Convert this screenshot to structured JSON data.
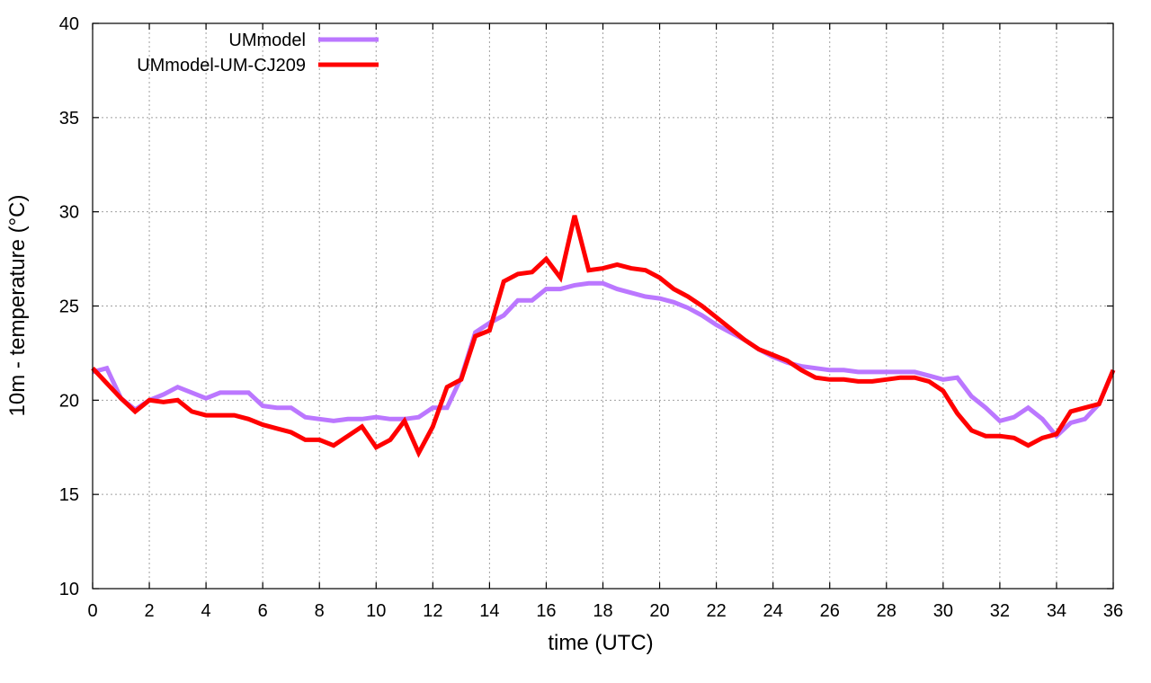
{
  "chart_data": {
    "type": "line",
    "xlabel": "time (UTC)",
    "ylabel": "10m - temperature (°C)",
    "xlim": [
      0,
      36
    ],
    "ylim": [
      10,
      40
    ],
    "xticks": [
      0,
      2,
      4,
      6,
      8,
      10,
      12,
      14,
      16,
      18,
      20,
      22,
      24,
      26,
      28,
      30,
      32,
      34,
      36
    ],
    "yticks": [
      10,
      15,
      20,
      25,
      30,
      35,
      40
    ],
    "grid": true,
    "legend_position": "top-left",
    "series": [
      {
        "name": "UMmodel",
        "color": "#bb77ff",
        "points": [
          [
            0,
            21.5
          ],
          [
            0.5,
            21.7
          ],
          [
            1,
            20.1
          ],
          [
            1.5,
            19.5
          ],
          [
            2,
            20.0
          ],
          [
            2.5,
            20.3
          ],
          [
            3,
            20.7
          ],
          [
            3.5,
            20.4
          ],
          [
            4,
            20.1
          ],
          [
            4.5,
            20.4
          ],
          [
            5,
            20.4
          ],
          [
            5.5,
            20.4
          ],
          [
            6,
            19.7
          ],
          [
            6.5,
            19.6
          ],
          [
            7,
            19.6
          ],
          [
            7.5,
            19.1
          ],
          [
            8,
            19.0
          ],
          [
            8.5,
            18.9
          ],
          [
            9,
            19.0
          ],
          [
            9.5,
            19.0
          ],
          [
            10,
            19.1
          ],
          [
            10.5,
            19.0
          ],
          [
            11,
            19.0
          ],
          [
            11.5,
            19.1
          ],
          [
            12,
            19.6
          ],
          [
            12.5,
            19.6
          ],
          [
            13,
            21.2
          ],
          [
            13.5,
            23.6
          ],
          [
            14,
            24.1
          ],
          [
            14.5,
            24.5
          ],
          [
            15,
            25.3
          ],
          [
            15.5,
            25.3
          ],
          [
            16,
            25.9
          ],
          [
            16.5,
            25.9
          ],
          [
            17,
            26.1
          ],
          [
            17.5,
            26.2
          ],
          [
            18,
            26.2
          ],
          [
            18.5,
            25.9
          ],
          [
            19,
            25.7
          ],
          [
            19.5,
            25.5
          ],
          [
            20,
            25.4
          ],
          [
            20.5,
            25.2
          ],
          [
            21,
            24.9
          ],
          [
            21.5,
            24.5
          ],
          [
            22,
            24.0
          ],
          [
            22.5,
            23.6
          ],
          [
            23,
            23.2
          ],
          [
            23.5,
            22.7
          ],
          [
            24,
            22.3
          ],
          [
            24.5,
            22.0
          ],
          [
            25,
            21.8
          ],
          [
            25.5,
            21.7
          ],
          [
            26,
            21.6
          ],
          [
            26.5,
            21.6
          ],
          [
            27,
            21.5
          ],
          [
            27.5,
            21.5
          ],
          [
            28,
            21.5
          ],
          [
            28.5,
            21.5
          ],
          [
            29,
            21.5
          ],
          [
            29.5,
            21.3
          ],
          [
            30,
            21.1
          ],
          [
            30.5,
            21.2
          ],
          [
            31,
            20.2
          ],
          [
            31.5,
            19.6
          ],
          [
            32,
            18.9
          ],
          [
            32.5,
            19.1
          ],
          [
            33,
            19.6
          ],
          [
            33.5,
            19.0
          ],
          [
            34,
            18.1
          ],
          [
            34.5,
            18.8
          ],
          [
            35,
            19.0
          ],
          [
            35.5,
            19.8
          ],
          [
            36,
            21.6
          ]
        ]
      },
      {
        "name": "UMmodel-UM-CJ209",
        "color": "#ff0000",
        "points": [
          [
            0,
            21.7
          ],
          [
            0.5,
            20.9
          ],
          [
            1,
            20.1
          ],
          [
            1.5,
            19.4
          ],
          [
            2,
            20.0
          ],
          [
            2.5,
            19.9
          ],
          [
            3,
            20.0
          ],
          [
            3.5,
            19.4
          ],
          [
            4,
            19.2
          ],
          [
            4.5,
            19.2
          ],
          [
            5,
            19.2
          ],
          [
            5.5,
            19.0
          ],
          [
            6,
            18.7
          ],
          [
            6.5,
            18.5
          ],
          [
            7,
            18.3
          ],
          [
            7.5,
            17.9
          ],
          [
            8,
            17.9
          ],
          [
            8.5,
            17.6
          ],
          [
            9,
            18.1
          ],
          [
            9.5,
            18.6
          ],
          [
            10,
            17.5
          ],
          [
            10.5,
            17.9
          ],
          [
            11,
            18.9
          ],
          [
            11.5,
            17.2
          ],
          [
            12,
            18.6
          ],
          [
            12.5,
            20.7
          ],
          [
            13,
            21.1
          ],
          [
            13.5,
            23.4
          ],
          [
            14,
            23.7
          ],
          [
            14.5,
            26.3
          ],
          [
            15,
            26.7
          ],
          [
            15.5,
            26.8
          ],
          [
            16,
            27.5
          ],
          [
            16.5,
            26.5
          ],
          [
            17,
            29.8
          ],
          [
            17.5,
            26.9
          ],
          [
            18,
            27.0
          ],
          [
            18.5,
            27.2
          ],
          [
            19,
            27.0
          ],
          [
            19.5,
            26.9
          ],
          [
            20,
            26.5
          ],
          [
            20.5,
            25.9
          ],
          [
            21,
            25.5
          ],
          [
            21.5,
            25.0
          ],
          [
            22,
            24.4
          ],
          [
            22.5,
            23.8
          ],
          [
            23,
            23.2
          ],
          [
            23.5,
            22.7
          ],
          [
            24,
            22.4
          ],
          [
            24.5,
            22.1
          ],
          [
            25,
            21.6
          ],
          [
            25.5,
            21.2
          ],
          [
            26,
            21.1
          ],
          [
            26.5,
            21.1
          ],
          [
            27,
            21.0
          ],
          [
            27.5,
            21.0
          ],
          [
            28,
            21.1
          ],
          [
            28.5,
            21.2
          ],
          [
            29,
            21.2
          ],
          [
            29.5,
            21.0
          ],
          [
            30,
            20.5
          ],
          [
            30.5,
            19.3
          ],
          [
            31,
            18.4
          ],
          [
            31.5,
            18.1
          ],
          [
            32,
            18.1
          ],
          [
            32.5,
            18.0
          ],
          [
            33,
            17.6
          ],
          [
            33.5,
            18.0
          ],
          [
            34,
            18.2
          ],
          [
            34.5,
            19.4
          ],
          [
            35,
            19.6
          ],
          [
            35.5,
            19.8
          ],
          [
            36,
            21.6
          ]
        ]
      }
    ]
  }
}
